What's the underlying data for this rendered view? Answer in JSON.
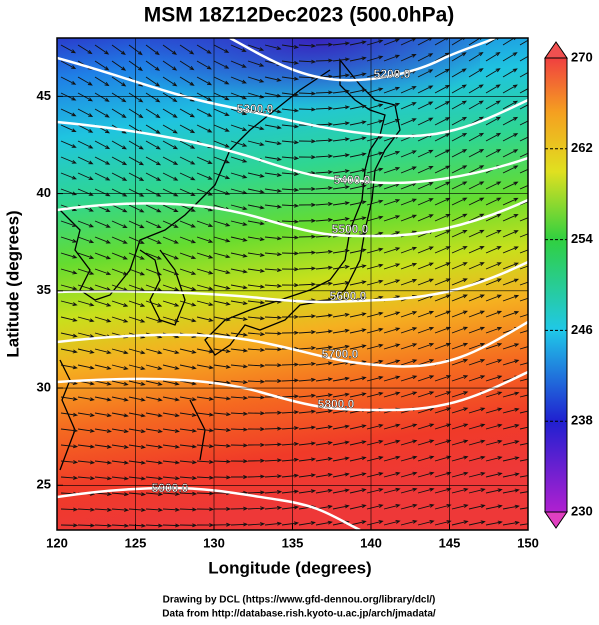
{
  "chart_data": {
    "type": "map",
    "title": "MSM 18Z12Dec2023 (500.0hPa)",
    "x_label": "Longitude (degrees)",
    "y_label": "Latitude  (degrees)",
    "xlim": [
      120,
      150
    ],
    "xticks": [
      120,
      125,
      130,
      135,
      140,
      145,
      150
    ],
    "ylim": [
      22.7,
      48
    ],
    "yticks": [
      25,
      30,
      35,
      40,
      45
    ],
    "grid": true,
    "colorbar": {
      "lim": [
        230,
        270
      ],
      "ticks": [
        230,
        238,
        246,
        254,
        262,
        270
      ]
    },
    "contours": [
      {
        "value": 5200,
        "label": "5200.0"
      },
      {
        "value": 5300,
        "label": "5300.0"
      },
      {
        "value": 5400,
        "label": "5400.0"
      },
      {
        "value": 5500,
        "label": "5500.0"
      },
      {
        "value": 5600,
        "label": "5600.0"
      },
      {
        "value": 5700,
        "label": "5700.0"
      },
      {
        "value": 5800,
        "label": "5800.0"
      },
      {
        "value": 5900,
        "label": "5900.0"
      }
    ],
    "credits": [
      "Drawing by DCL (https://www.gfd-dennou.org/library/dcl/)",
      "Data from http://database.rish.kyoto-u.ac.jp/arch/jmadata/"
    ]
  }
}
